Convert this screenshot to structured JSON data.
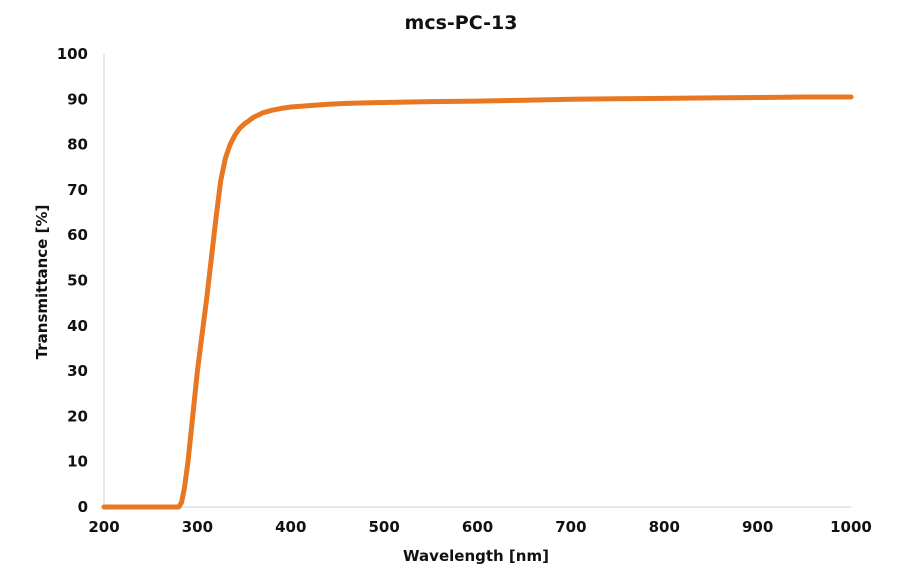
{
  "chart_data": {
    "type": "line",
    "title": "mcs-PC-13",
    "xlabel": "Wavelength [nm]",
    "ylabel": "Transmittance [%]",
    "xlim": [
      200,
      1000
    ],
    "ylim": [
      0,
      100
    ],
    "x_ticks": [
      200,
      300,
      400,
      500,
      600,
      700,
      800,
      900,
      1000
    ],
    "y_ticks": [
      0,
      10,
      20,
      30,
      40,
      50,
      60,
      70,
      80,
      90,
      100
    ],
    "grid": false,
    "legend": "none",
    "series": [
      {
        "color": "#E87722",
        "x": [
          200,
          250,
          280,
          283,
          286,
          290,
          295,
          300,
          305,
          310,
          315,
          320,
          325,
          330,
          335,
          340,
          345,
          350,
          360,
          370,
          380,
          390,
          400,
          420,
          440,
          460,
          480,
          500,
          550,
          600,
          650,
          700,
          750,
          800,
          850,
          900,
          950,
          1000
        ],
        "y": [
          0,
          0,
          0,
          1,
          4,
          10,
          20,
          30,
          38,
          46,
          55,
          64,
          72,
          77,
          80,
          82,
          83.5,
          84.5,
          86,
          87,
          87.6,
          88,
          88.3,
          88.6,
          88.9,
          89.1,
          89.2,
          89.3,
          89.5,
          89.6,
          89.8,
          90,
          90.1,
          90.2,
          90.3,
          90.4,
          90.5,
          90.5
        ]
      }
    ]
  }
}
